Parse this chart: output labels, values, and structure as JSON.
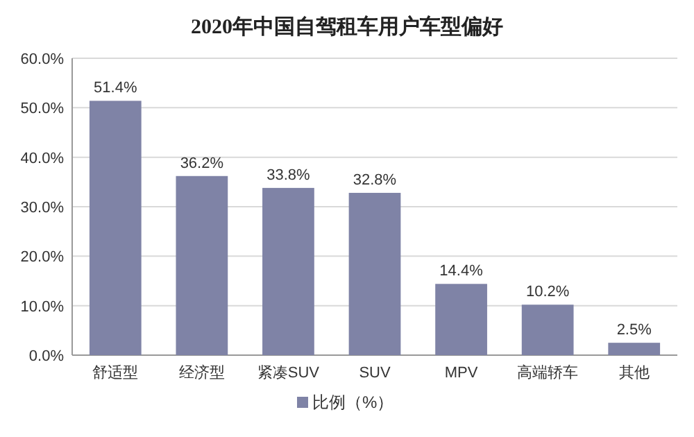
{
  "chart_data": {
    "type": "bar",
    "title": "2020年中国自驾租车用户车型偏好",
    "categories": [
      "舒适型",
      "经济型",
      "紧凑SUV",
      "SUV",
      "MPV",
      "高端轿车",
      "其他"
    ],
    "series": [
      {
        "name": "比例（%）",
        "color": "#7f83a6",
        "values": [
          51.4,
          36.2,
          33.8,
          32.8,
          14.4,
          10.2,
          2.5
        ],
        "value_labels": [
          "51.4%",
          "36.2%",
          "33.8%",
          "32.8%",
          "14.4%",
          "10.2%",
          "2.5%"
        ]
      }
    ],
    "ylim": [
      0,
      60
    ],
    "yticks": [
      {
        "value": 0,
        "label": "0.0%"
      },
      {
        "value": 10,
        "label": "10.0%"
      },
      {
        "value": 20,
        "label": "20.0%"
      },
      {
        "value": 30,
        "label": "30.0%"
      },
      {
        "value": 40,
        "label": "40.0%"
      },
      {
        "value": 50,
        "label": "50.0%"
      },
      {
        "value": 60,
        "label": "60.0%"
      }
    ],
    "grid": "y",
    "legend": "bottom"
  }
}
